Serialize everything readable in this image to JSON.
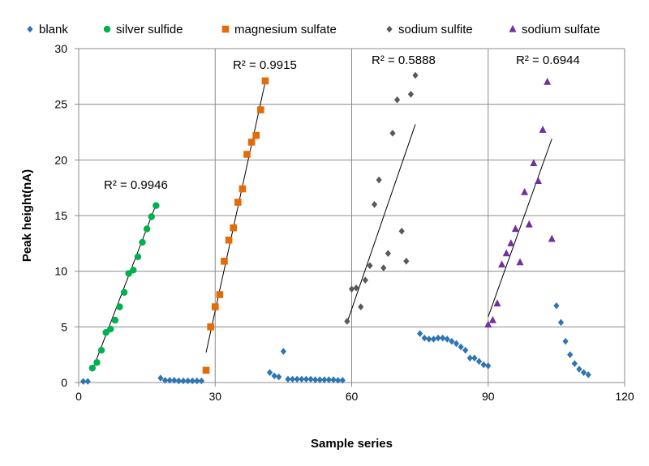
{
  "chart_data": {
    "type": "scatter",
    "xlabel": "Sample series",
    "ylabel": "Peak height(nA)",
    "xlim": [
      0,
      120
    ],
    "ylim": [
      0,
      30
    ],
    "xticks": [
      0,
      30,
      60,
      90,
      120
    ],
    "yticks": [
      0,
      5,
      10,
      15,
      20,
      25,
      30
    ],
    "grid": "horizontal and vertical",
    "legend": "top",
    "series": [
      {
        "name": "blank",
        "marker": "diamond",
        "color": "#2E75B6",
        "points": [
          [
            1,
            0.1
          ],
          [
            2,
            0.1
          ],
          [
            18,
            0.4
          ],
          [
            19,
            0.2
          ],
          [
            20,
            0.2
          ],
          [
            21,
            0.2
          ],
          [
            22,
            0.15
          ],
          [
            23,
            0.15
          ],
          [
            24,
            0.15
          ],
          [
            25,
            0.15
          ],
          [
            26,
            0.15
          ],
          [
            27,
            0.15
          ],
          [
            42,
            0.9
          ],
          [
            43,
            0.6
          ],
          [
            44,
            0.5
          ],
          [
            45,
            2.8
          ],
          [
            46,
            0.3
          ],
          [
            47,
            0.3
          ],
          [
            48,
            0.3
          ],
          [
            49,
            0.3
          ],
          [
            50,
            0.3
          ],
          [
            51,
            0.3
          ],
          [
            52,
            0.25
          ],
          [
            53,
            0.25
          ],
          [
            54,
            0.25
          ],
          [
            55,
            0.25
          ],
          [
            56,
            0.25
          ],
          [
            57,
            0.2
          ],
          [
            58,
            0.2
          ],
          [
            75,
            4.4
          ],
          [
            76,
            4.0
          ],
          [
            77,
            3.9
          ],
          [
            78,
            3.9
          ],
          [
            79,
            4.0
          ],
          [
            80,
            4.0
          ],
          [
            81,
            3.9
          ],
          [
            82,
            3.7
          ],
          [
            83,
            3.5
          ],
          [
            84,
            3.2
          ],
          [
            85,
            2.9
          ],
          [
            86,
            2.2
          ],
          [
            87,
            2.2
          ],
          [
            88,
            1.9
          ],
          [
            89,
            1.6
          ],
          [
            90,
            1.5
          ],
          [
            105,
            6.9
          ],
          [
            106,
            5.4
          ],
          [
            107,
            3.7
          ],
          [
            108,
            2.5
          ],
          [
            109,
            1.7
          ],
          [
            110,
            1.2
          ],
          [
            111,
            0.9
          ],
          [
            112,
            0.7
          ]
        ]
      },
      {
        "name": "silver sulfide",
        "marker": "circle",
        "color": "#00B050",
        "points": [
          [
            3,
            1.3
          ],
          [
            4,
            1.8
          ],
          [
            5,
            2.9
          ],
          [
            6,
            4.5
          ],
          [
            7,
            4.8
          ],
          [
            8,
            5.6
          ],
          [
            9,
            6.8
          ],
          [
            10,
            8.1
          ],
          [
            11,
            9.8
          ],
          [
            12,
            10.1
          ],
          [
            13,
            11.3
          ],
          [
            14,
            12.6
          ],
          [
            15,
            13.8
          ],
          [
            16,
            14.9
          ],
          [
            17,
            15.9
          ]
        ],
        "trendline": {
          "from": [
            3,
            1.1
          ],
          "to": [
            17,
            16.0
          ]
        },
        "r2": "R² = 0.9946"
      },
      {
        "name": "magnesium sulfate",
        "marker": "square",
        "color": "#E36C09",
        "points": [
          [
            28,
            1.1
          ],
          [
            29,
            5.0
          ],
          [
            30,
            6.8
          ],
          [
            31,
            7.9
          ],
          [
            32,
            10.9
          ],
          [
            33,
            12.8
          ],
          [
            34,
            13.9
          ],
          [
            35,
            16.2
          ],
          [
            36,
            17.4
          ],
          [
            37,
            20.5
          ],
          [
            38,
            21.6
          ],
          [
            39,
            22.2
          ],
          [
            40,
            24.5
          ],
          [
            41,
            27.1
          ]
        ],
        "trendline": {
          "from": [
            28,
            2.7
          ],
          "to": [
            41,
            27.0
          ]
        },
        "r2": "R² = 0.9915"
      },
      {
        "name": "sodium sulfite",
        "marker": "diamond",
        "color": "#595959",
        "points": [
          [
            59,
            5.5
          ],
          [
            60,
            8.4
          ],
          [
            61,
            8.5
          ],
          [
            62,
            6.8
          ],
          [
            63,
            9.2
          ],
          [
            64,
            10.5
          ],
          [
            65,
            16.0
          ],
          [
            66,
            18.2
          ],
          [
            67,
            10.3
          ],
          [
            68,
            11.6
          ],
          [
            69,
            22.4
          ],
          [
            70,
            25.4
          ],
          [
            71,
            13.6
          ],
          [
            72,
            10.9
          ],
          [
            73,
            25.9
          ],
          [
            74,
            27.6
          ]
        ],
        "trendline": {
          "from": [
            59,
            5.4
          ],
          "to": [
            74,
            23.2
          ]
        },
        "r2": "R² = 0.5888"
      },
      {
        "name": "sodium sulfate",
        "marker": "triangle",
        "color": "#7030A0",
        "points": [
          [
            90,
            5.2
          ],
          [
            91,
            5.6
          ],
          [
            92,
            7.1
          ],
          [
            93,
            10.6
          ],
          [
            94,
            11.6
          ],
          [
            95,
            12.5
          ],
          [
            96,
            13.8
          ],
          [
            97,
            10.8
          ],
          [
            98,
            17.1
          ],
          [
            99,
            14.2
          ],
          [
            100,
            19.7
          ],
          [
            101,
            18.1
          ],
          [
            102,
            22.7
          ],
          [
            103,
            27.0
          ],
          [
            104,
            12.9
          ]
        ],
        "trendline": {
          "from": [
            90,
            5.9
          ],
          "to": [
            104,
            21.9
          ]
        },
        "r2": "R² = 0.6944"
      }
    ]
  }
}
